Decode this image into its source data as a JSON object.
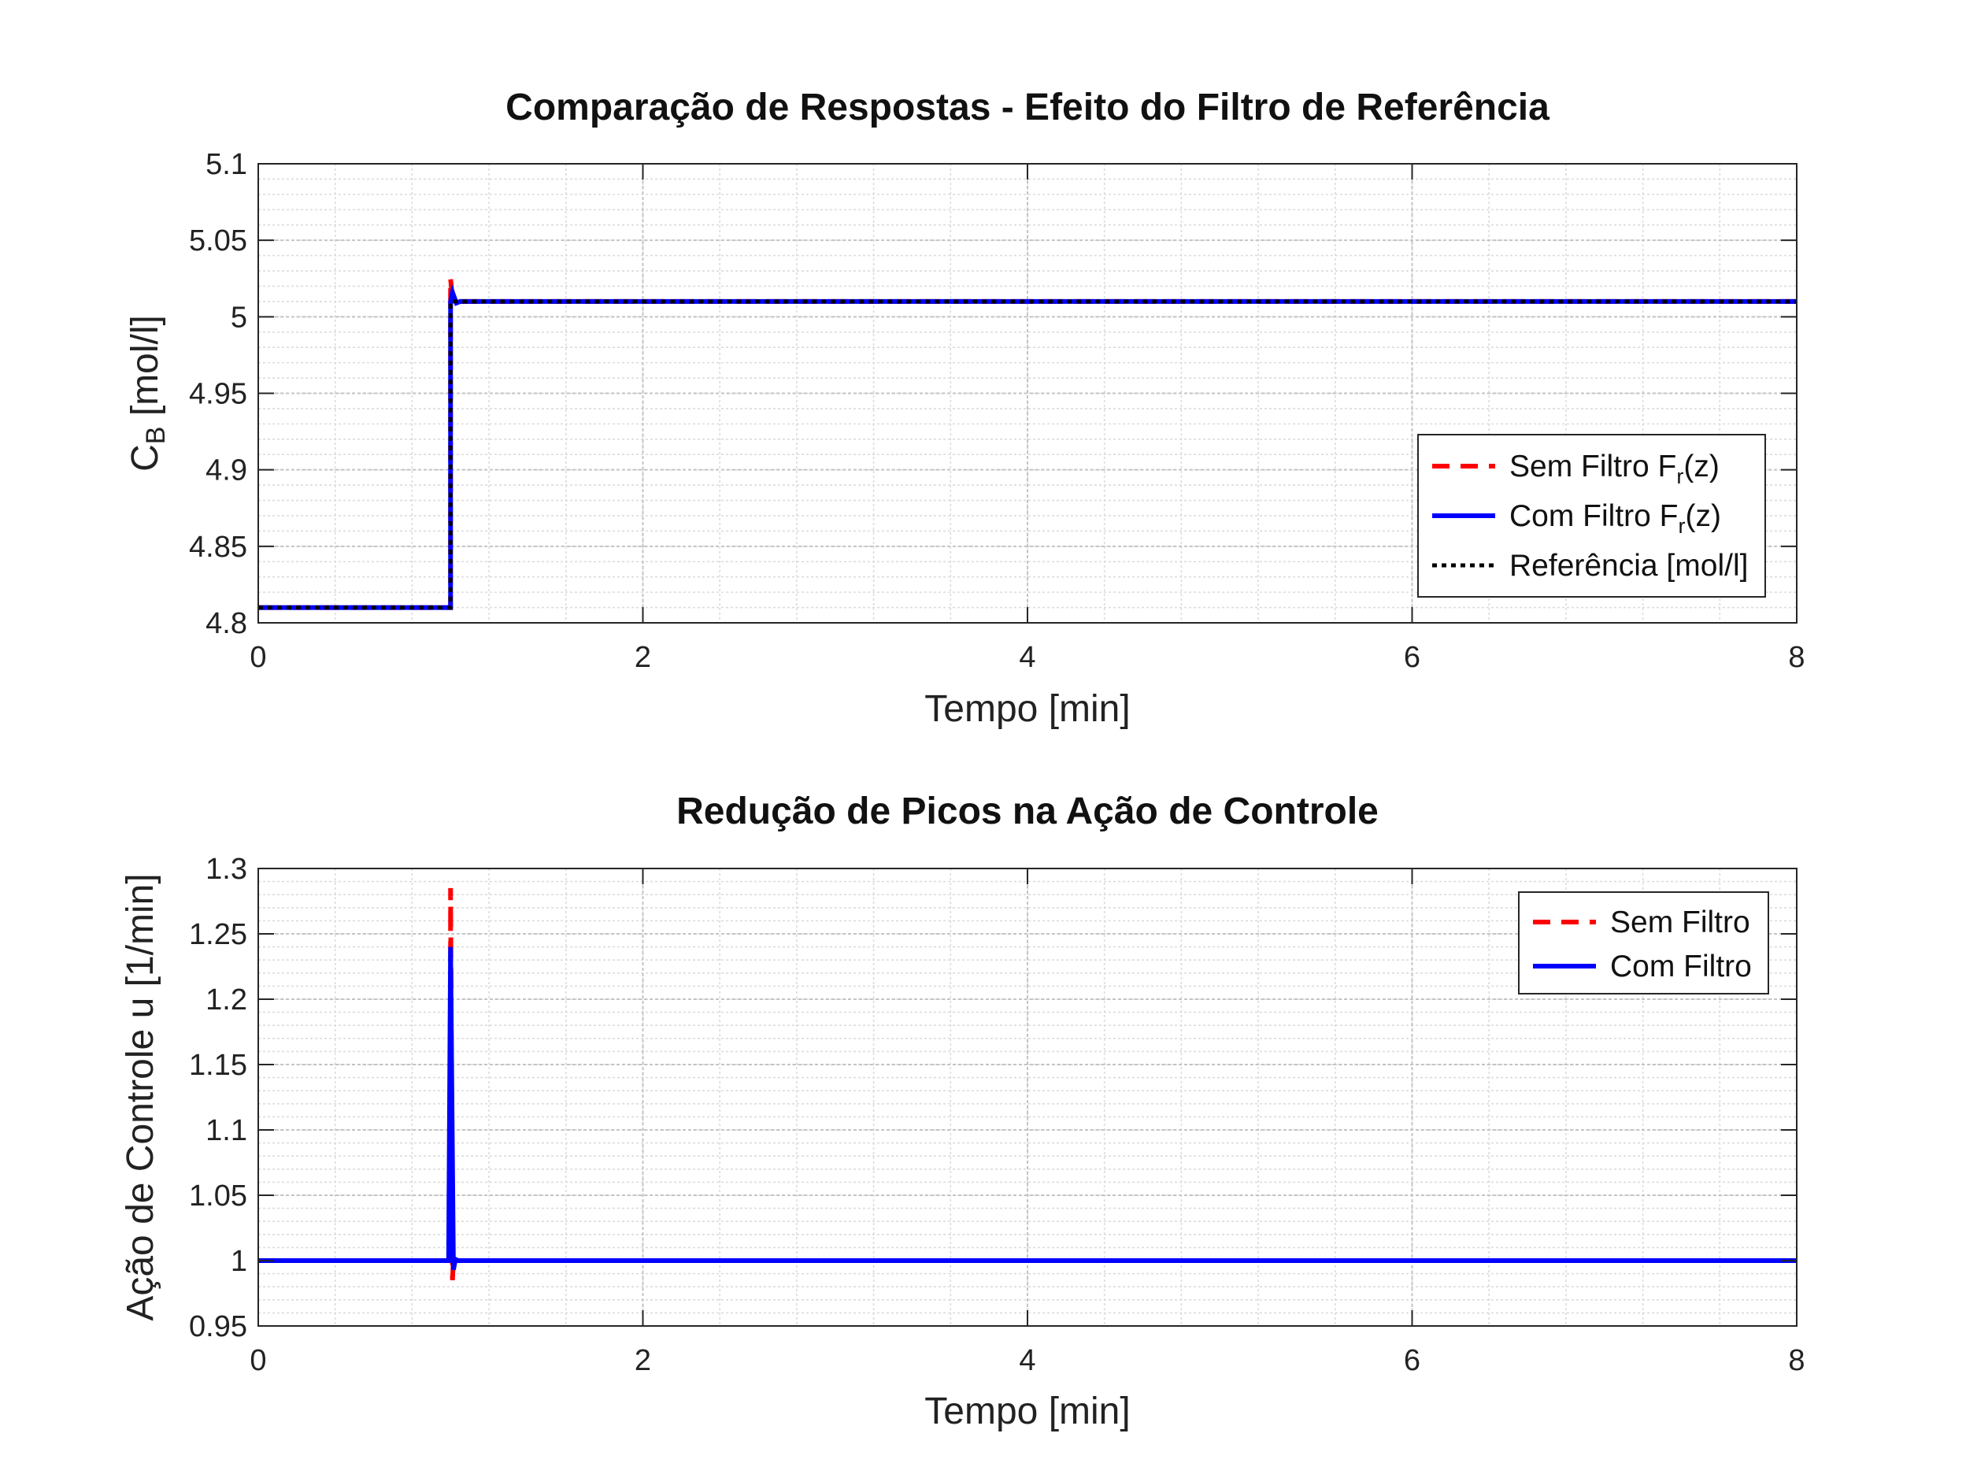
{
  "colors": {
    "sem_filtro": "#ff0000",
    "com_filtro": "#0000ff",
    "referencia": "#000000",
    "grid": "#c8c8c8"
  },
  "chart_data": [
    {
      "type": "line",
      "title": "Comparação de Respostas - Efeito do Filtro de Referência",
      "xlabel": "Tempo [min]",
      "ylabel_main": "C",
      "ylabel_sub": "B",
      "ylabel_rest": " [mol/l]",
      "xlim": [
        0,
        8
      ],
      "ylim": [
        4.8,
        5.1
      ],
      "xticks": [
        0,
        2,
        4,
        6,
        8
      ],
      "xtick_labels": [
        "0",
        "2",
        "4",
        "6",
        "8"
      ],
      "yticks": [
        4.8,
        4.85,
        4.9,
        4.95,
        5.0,
        5.05,
        5.1
      ],
      "ytick_labels": [
        "4.8",
        "4.85",
        "4.9",
        "4.95",
        "5",
        "5.05",
        "5.1"
      ],
      "grid": true,
      "legend_position": "right",
      "series": [
        {
          "label_main": "Sem Filtro F",
          "label_sub": "r",
          "label_rest": "(z)",
          "style": "dashed",
          "color": "#ff0000",
          "x": [
            0,
            1.0,
            1.0,
            1.01,
            1.03,
            1.05,
            8
          ],
          "y": [
            4.81,
            4.81,
            5.025,
            5.012,
            5.008,
            5.01,
            5.01
          ]
        },
        {
          "label_main": "Com Filtro F",
          "label_sub": "r",
          "label_rest": "(z)",
          "style": "solid",
          "color": "#0000ff",
          "x": [
            0,
            1.0,
            1.0,
            1.01,
            1.03,
            1.05,
            8
          ],
          "y": [
            4.81,
            4.81,
            5.01,
            5.016,
            5.009,
            5.01,
            5.01
          ]
        },
        {
          "label_main": "Referência [mol/l]",
          "label_sub": "",
          "label_rest": "",
          "style": "dotted",
          "color": "#000000",
          "x": [
            0,
            1.0,
            1.0,
            8
          ],
          "y": [
            4.81,
            4.81,
            5.01,
            5.01
          ]
        }
      ]
    },
    {
      "type": "line",
      "title": "Redução de Picos na Ação de Controle",
      "xlabel": "Tempo [min]",
      "ylabel_main": "Ação de Controle u [1/min]",
      "ylabel_sub": "",
      "ylabel_rest": "",
      "xlim": [
        0,
        8
      ],
      "ylim": [
        0.95,
        1.3
      ],
      "xticks": [
        0,
        2,
        4,
        6,
        8
      ],
      "xtick_labels": [
        "0",
        "2",
        "4",
        "6",
        "8"
      ],
      "yticks": [
        0.95,
        1.0,
        1.05,
        1.1,
        1.15,
        1.2,
        1.25,
        1.3
      ],
      "ytick_labels": [
        "0.95",
        "1",
        "1.05",
        "1.1",
        "1.15",
        "1.2",
        "1.25",
        "1.3"
      ],
      "grid": true,
      "legend_position": "top-right",
      "series": [
        {
          "label_main": "Sem Filtro",
          "label_sub": "",
          "label_rest": "",
          "style": "dashed",
          "color": "#ff0000",
          "x": [
            0,
            1.0,
            1.0,
            1.01,
            1.015,
            1.03,
            8
          ],
          "y": [
            1.0,
            1.0,
            1.285,
            0.985,
            1.002,
            1.0,
            1.0
          ]
        },
        {
          "label_main": "Com Filtro",
          "label_sub": "",
          "label_rest": "",
          "style": "solid",
          "color": "#0000ff",
          "x": [
            0,
            0.99,
            1.0,
            1.015,
            1.025,
            1.04,
            8
          ],
          "y": [
            1.0,
            1.0,
            1.24,
            0.993,
            1.001,
            1.0,
            1.0
          ]
        }
      ]
    }
  ]
}
